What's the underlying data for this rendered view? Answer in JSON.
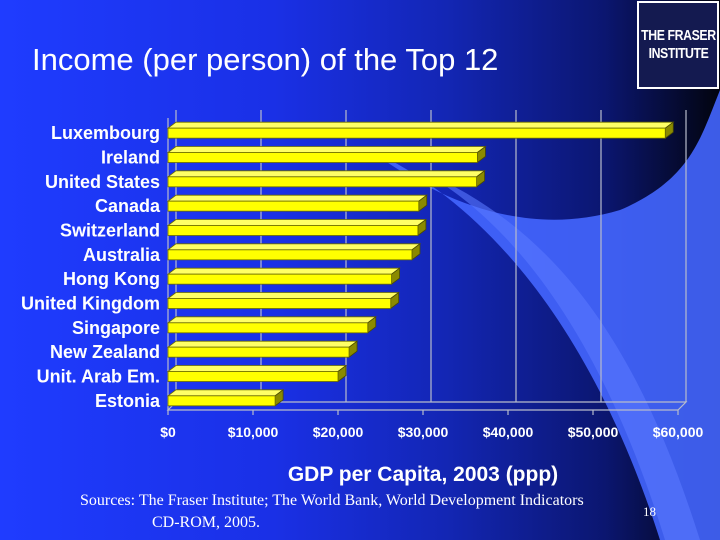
{
  "slide": {
    "title": "Income (per person) of the Top 12",
    "logo_lines": [
      "THE FRASER",
      "INSTITUTE"
    ],
    "sources_line1": "Sources: The Fraser Institute; The World Bank, World Development Indicators",
    "sources_line2": "CD-ROM, 2005.",
    "slide_number": "18"
  },
  "colors": {
    "bar": "#ffff00",
    "bar_shadow": "#8a8a00",
    "gridline": "#b8bccc",
    "background": "#1f3cff"
  },
  "chart_data": {
    "type": "bar",
    "orientation": "horizontal",
    "style": "3d",
    "title": "",
    "xlabel": "GDP per Capita, 2003 (ppp)",
    "ylabel": "",
    "categories": [
      "Luxembourg",
      "Ireland",
      "United States",
      "Canada",
      "Switzerland",
      "Australia",
      "Hong Kong",
      "United Kingdom",
      "Singapore",
      "New Zealand",
      "Unit. Arab Em.",
      "Estonia"
    ],
    "values": [
      58500,
      36400,
      36300,
      29500,
      29400,
      28700,
      26300,
      26200,
      23500,
      21300,
      20000,
      12600
    ],
    "xlim": [
      0,
      60000
    ],
    "x_ticks": [
      0,
      10000,
      20000,
      30000,
      40000,
      50000,
      60000
    ],
    "x_tick_labels": [
      "$0",
      "$10,000",
      "$20,000",
      "$30,000",
      "$40,000",
      "$50,000",
      "$60,000"
    ],
    "grid": true,
    "legend": "none"
  }
}
